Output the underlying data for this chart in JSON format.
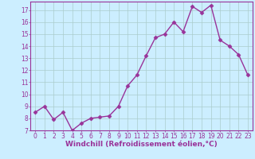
{
  "x": [
    0,
    1,
    2,
    3,
    4,
    5,
    6,
    7,
    8,
    9,
    10,
    11,
    12,
    13,
    14,
    15,
    16,
    17,
    18,
    19,
    20,
    21,
    22,
    23
  ],
  "y": [
    8.5,
    9.0,
    7.9,
    8.5,
    7.0,
    7.6,
    8.0,
    8.1,
    8.2,
    9.0,
    10.7,
    11.6,
    13.2,
    14.7,
    15.0,
    16.0,
    15.2,
    17.3,
    16.8,
    17.4,
    14.5,
    14.0,
    13.3,
    11.6
  ],
  "xlabel": "Windchill (Refroidissement éolien,°C)",
  "line_color": "#993399",
  "marker": "D",
  "marker_size": 2.5,
  "bg_color": "#cceeff",
  "grid_color": "#aacccc",
  "ylim": [
    7,
    17.7
  ],
  "xlim": [
    -0.5,
    23.5
  ],
  "yticks": [
    7,
    8,
    9,
    10,
    11,
    12,
    13,
    14,
    15,
    16,
    17
  ],
  "xticks": [
    0,
    1,
    2,
    3,
    4,
    5,
    6,
    7,
    8,
    9,
    10,
    11,
    12,
    13,
    14,
    15,
    16,
    17,
    18,
    19,
    20,
    21,
    22,
    23
  ],
  "tick_color": "#993399",
  "label_fontsize": 6.5,
  "tick_fontsize": 5.5,
  "linewidth": 1.0
}
